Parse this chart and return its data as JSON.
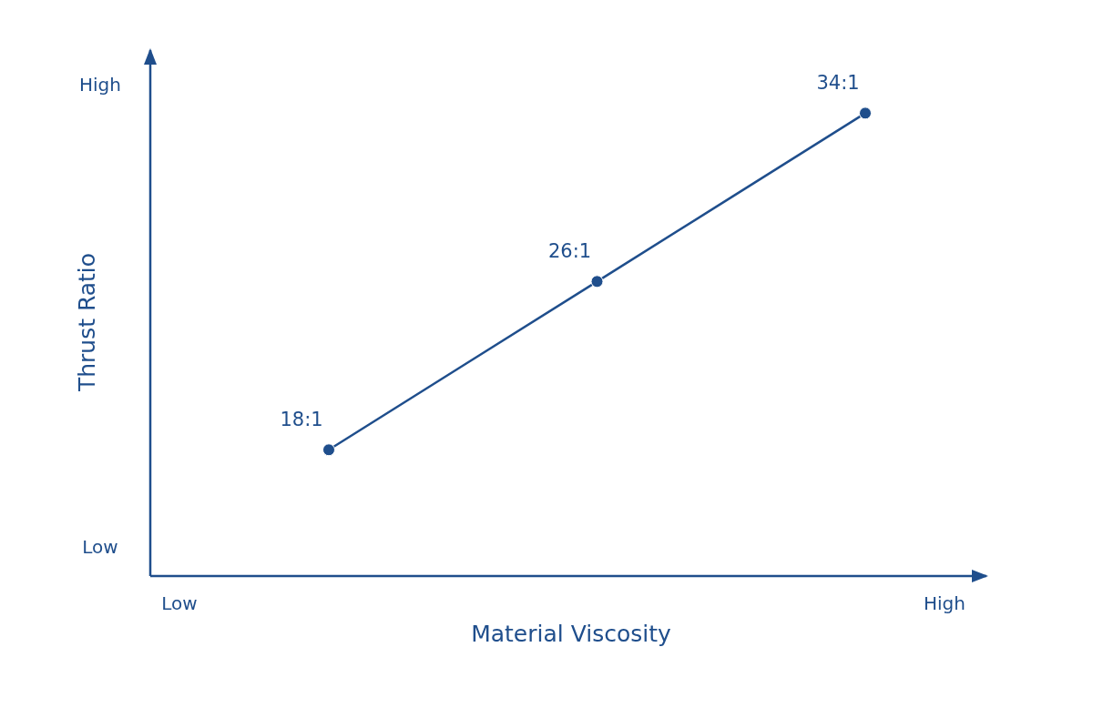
{
  "chart_data": {
    "type": "line",
    "xlabel": "Material Viscosity",
    "ylabel": "Thrust Ratio",
    "annotations": [
      "Low",
      "High",
      "Low",
      "High"
    ],
    "categories": [
      null,
      null,
      null
    ],
    "ylim": [
      12,
      37
    ],
    "marker": "circle",
    "line_style": "solid",
    "series": [
      {
        "color": "#1f4e8c",
        "values": [
          18,
          26,
          34
        ],
        "value_labels": [
          "18:1",
          "26:1",
          "34:1"
        ]
      }
    ]
  }
}
